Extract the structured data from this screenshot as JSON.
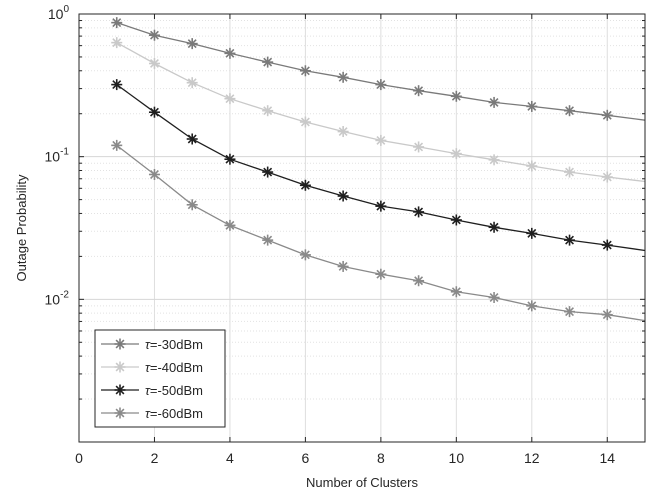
{
  "chart_data": {
    "type": "line",
    "xlabel": "Number of Clusters",
    "ylabel": "Outage Probability",
    "xlim": [
      0,
      15
    ],
    "ylim": [
      0.001,
      1
    ],
    "yscale": "log",
    "grid": true,
    "legend_position": "bottom-left",
    "x_ticks": [
      0,
      2,
      4,
      6,
      8,
      10,
      12,
      14
    ],
    "y_ticks": [
      {
        "value": 1,
        "mantissa": "10",
        "exponent": "0"
      },
      {
        "value": 0.1,
        "mantissa": "10",
        "exponent": "-1"
      },
      {
        "value": 0.01,
        "mantissa": "10",
        "exponent": "-2"
      }
    ],
    "series": [
      {
        "name": "=-30dBm",
        "symbol": "τ",
        "color": "#7a7a7a",
        "x": [
          1,
          2,
          3,
          4,
          5,
          6,
          7,
          8,
          9,
          10,
          11,
          12,
          13,
          14,
          15
        ],
        "y": [
          0.87,
          0.71,
          0.62,
          0.53,
          0.46,
          0.4,
          0.36,
          0.32,
          0.29,
          0.265,
          0.24,
          0.225,
          0.21,
          0.195,
          0.18
        ],
        "marker_count": 14
      },
      {
        "name": "=-40dBm",
        "symbol": "τ",
        "color": "#c9c9c9",
        "x": [
          1,
          2,
          3,
          4,
          5,
          6,
          7,
          8,
          9,
          10,
          11,
          12,
          13,
          14,
          15
        ],
        "y": [
          0.63,
          0.45,
          0.33,
          0.255,
          0.21,
          0.175,
          0.15,
          0.13,
          0.117,
          0.105,
          0.095,
          0.086,
          0.078,
          0.072,
          0.067
        ],
        "marker_count": 14
      },
      {
        "name": "=-50dBm",
        "symbol": "τ",
        "color": "#1f1f1f",
        "x": [
          1,
          2,
          3,
          4,
          5,
          6,
          7,
          8,
          9,
          10,
          11,
          12,
          13,
          14,
          15
        ],
        "y": [
          0.32,
          0.205,
          0.133,
          0.096,
          0.078,
          0.063,
          0.053,
          0.045,
          0.041,
          0.036,
          0.032,
          0.029,
          0.026,
          0.024,
          0.022
        ],
        "marker_count": 14
      },
      {
        "name": "=-60dBm",
        "symbol": "τ",
        "color": "#8a8a8a",
        "x": [
          1,
          2,
          3,
          4,
          5,
          6,
          7,
          8,
          9,
          10,
          11,
          12,
          13,
          14,
          15
        ],
        "y": [
          0.12,
          0.075,
          0.046,
          0.033,
          0.026,
          0.0205,
          0.017,
          0.015,
          0.0135,
          0.0113,
          0.0103,
          0.009,
          0.0082,
          0.0078,
          0.0071
        ],
        "marker_count": 14
      }
    ]
  }
}
